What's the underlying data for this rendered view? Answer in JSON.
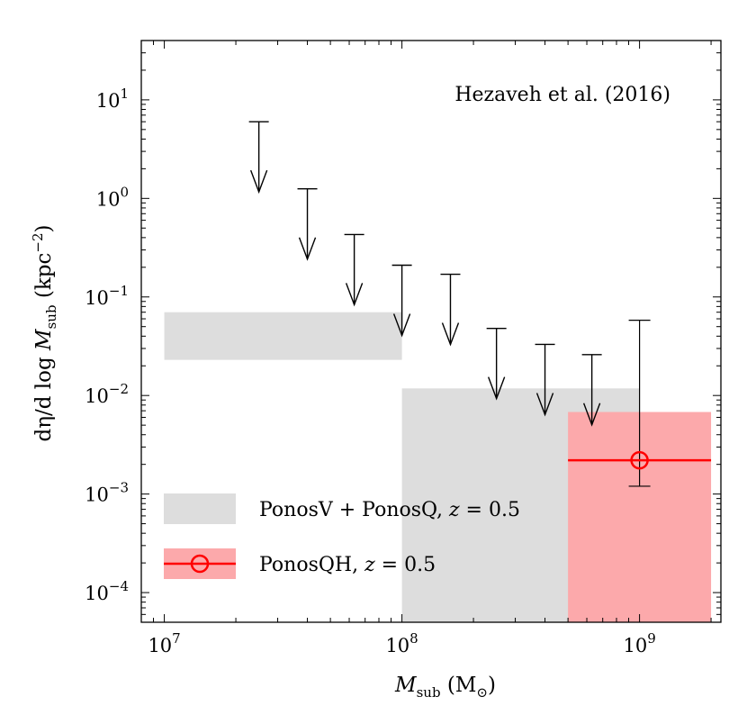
{
  "chart_data": {
    "type": "scatter",
    "xscale": "log",
    "yscale": "log",
    "xlim": [
      8000000,
      2200000000
    ],
    "ylim": [
      5e-05,
      40
    ],
    "x_ticks": [
      {
        "value": 10000000,
        "base": "10",
        "exp": "7"
      },
      {
        "value": 100000000,
        "base": "10",
        "exp": "8"
      },
      {
        "value": 1000000000,
        "base": "10",
        "exp": "9"
      }
    ],
    "y_ticks": [
      {
        "value": 0.0001,
        "base": "10",
        "exp": "−4"
      },
      {
        "value": 0.001,
        "base": "10",
        "exp": "−3"
      },
      {
        "value": 0.01,
        "base": "10",
        "exp": "−2"
      },
      {
        "value": 0.1,
        "base": "10",
        "exp": "−1"
      },
      {
        "value": 1,
        "base": "10",
        "exp": "0"
      },
      {
        "value": 10,
        "base": "10",
        "exp": "1"
      }
    ],
    "xlabel": {
      "main": "M",
      "sub": "sub",
      "unit_open": " (M",
      "unit_sub": "⊙",
      "unit_close": ")"
    },
    "ylabel": {
      "pre": "dη/d log ",
      "main": "M",
      "sub": "sub",
      "unit_open": " (kpc",
      "unit_sup": "−2",
      "unit_close": ")"
    },
    "annotation": "Hezaveh et al. (2016)",
    "upper_limits": {
      "label": "Hezaveh et al. (2016)",
      "color": "#000000",
      "points": [
        {
          "x": 25000000,
          "y": 6.0
        },
        {
          "x": 40000000,
          "y": 1.25
        },
        {
          "x": 63000000,
          "y": 0.43
        },
        {
          "x": 100000000,
          "y": 0.21
        },
        {
          "x": 160000000,
          "y": 0.17
        },
        {
          "x": 250000000,
          "y": 0.048
        },
        {
          "x": 400000000,
          "y": 0.033
        },
        {
          "x": 630000000,
          "y": 0.026
        }
      ]
    },
    "bands": [
      {
        "series": "PonosV + PonosQ, z = 0.5",
        "color": "#dddddd",
        "x0": 10000000,
        "x1": 100000000,
        "y0": 0.023,
        "y1": 0.07
      },
      {
        "series": "PonosV + PonosQ, z = 0.5",
        "color": "#dddddd",
        "x0": 100000000,
        "x1": 1000000000,
        "y0": 5e-05,
        "y1": 0.0118
      },
      {
        "series": "PonosQH, z = 0.5",
        "color": "#fca9ab",
        "x0": 500000000,
        "x1": 2000000000,
        "y0": 5e-05,
        "y1": 0.0068
      }
    ],
    "measurement": {
      "series": "PonosQH, z = 0.5",
      "color": "#ff0000",
      "x": 1000000000,
      "y": 0.0022,
      "x_range": [
        500000000,
        2000000000
      ],
      "y_err": [
        0.0012,
        0.058
      ]
    },
    "legend": {
      "position": "lower-left",
      "entries": [
        {
          "label_pre": "PonosV + PonosQ, ",
          "label_var": "z",
          "label_post": " = 0.5",
          "color": "#dddddd",
          "marker": "band"
        },
        {
          "label_pre": "PonosQH, ",
          "label_var": "z",
          "label_post": " = 0.5",
          "color": "#fca9ab",
          "line_color": "#ff0000",
          "marker": "circle"
        }
      ]
    }
  }
}
